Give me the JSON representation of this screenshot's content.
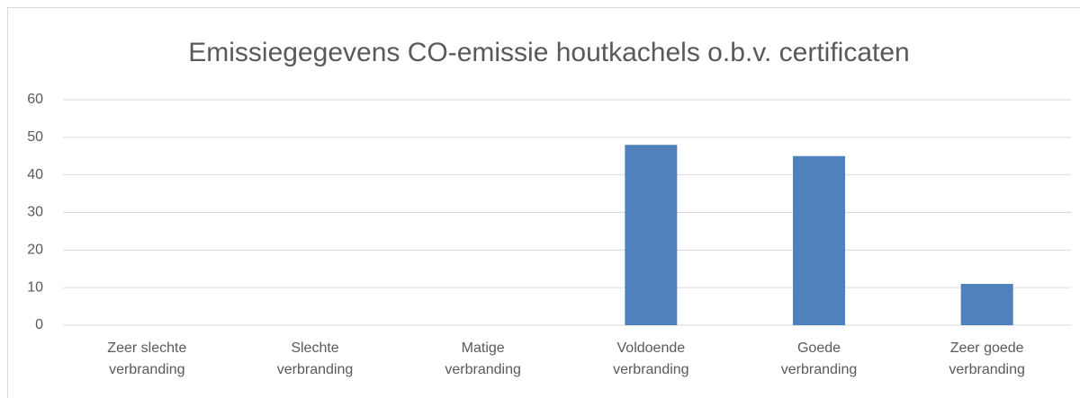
{
  "chart_data": {
    "type": "bar",
    "title": "Emissiegegevens CO-emissie houtkachels o.b.v. certificaten",
    "categories": [
      "Zeer slechte verbranding",
      "Slechte verbranding",
      "Matige verbranding",
      "Voldoende verbranding",
      "Goede verbranding",
      "Zeer goede verbranding"
    ],
    "values": [
      0,
      0,
      0,
      48,
      45,
      11
    ],
    "color": "#4f81bd",
    "ylim": [
      0,
      60
    ],
    "yticks": [
      0,
      10,
      20,
      30,
      40,
      50,
      60
    ],
    "grid": true
  }
}
